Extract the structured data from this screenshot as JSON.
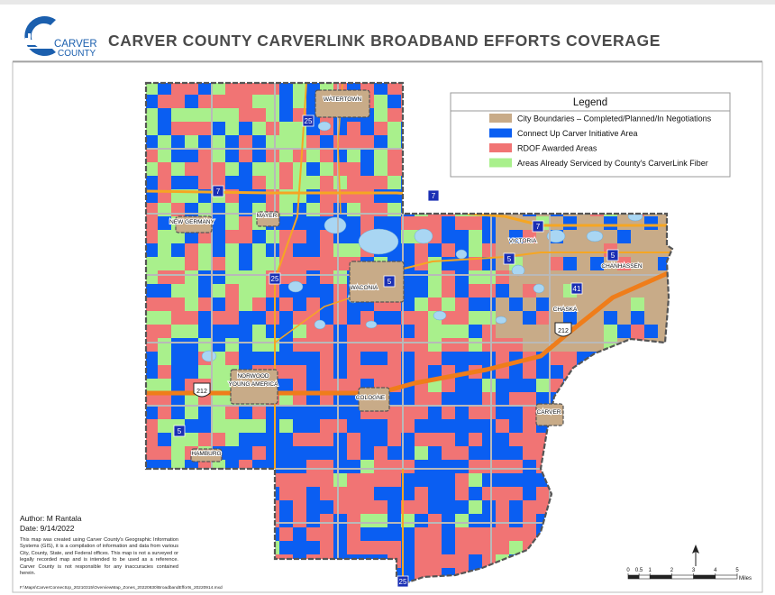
{
  "header": {
    "logo_line1": "CARVER",
    "logo_line2": "COUNTY",
    "title": "CARVER COUNTY CARVERLINK BROADBAND EFFORTS COVERAGE"
  },
  "legend": {
    "title": "Legend",
    "items": [
      {
        "label": "City Boundaries – Completed/Planned/In Negotiations",
        "color": "#c8ab88"
      },
      {
        "label": "Connect Up Carver Initiative Area",
        "color": "#0a5ef2"
      },
      {
        "label": "RDOF Awarded Areas",
        "color": "#f17474"
      },
      {
        "label": "Areas Already Serviced by County's CarverLink Fiber",
        "color": "#a9f08c"
      }
    ]
  },
  "cities": [
    "WATERTOWN",
    "NEW GERMANY",
    "MAYER",
    "VICTORIA",
    "CHANHASSEN",
    "WACONIA",
    "CHASKA",
    "NORWOOD",
    "YOUNG AMERICA",
    "COLOGNE",
    "CARVER",
    "HAMBURG"
  ],
  "routes": [
    "25",
    "7",
    "7",
    "7",
    "5",
    "5",
    "25",
    "5",
    "41",
    "212",
    "212",
    "5",
    "25"
  ],
  "credits": {
    "author": "Author: M Rantala",
    "date": "Date: 9/14/2022",
    "disclaimer": "This map was created using Carver County's Geographic Information Systems (GIS), it is a compilation of information and data from various City, County, State, and Federal offices. This map is not a surveyed or legally recorded map and is intended to be used as a reference. Carver County is not responsible for any inaccuracies contained herein.",
    "file_path": "F:\\Maps\\CarverConnectUp_20210315\\OverviewMap_Zones_20220830\\BroadbandEfforts_20220914.mxd"
  },
  "scale_bar": {
    "ticks": [
      0,
      0.5,
      1,
      2,
      3,
      4,
      5
    ],
    "unit": "Miles"
  }
}
